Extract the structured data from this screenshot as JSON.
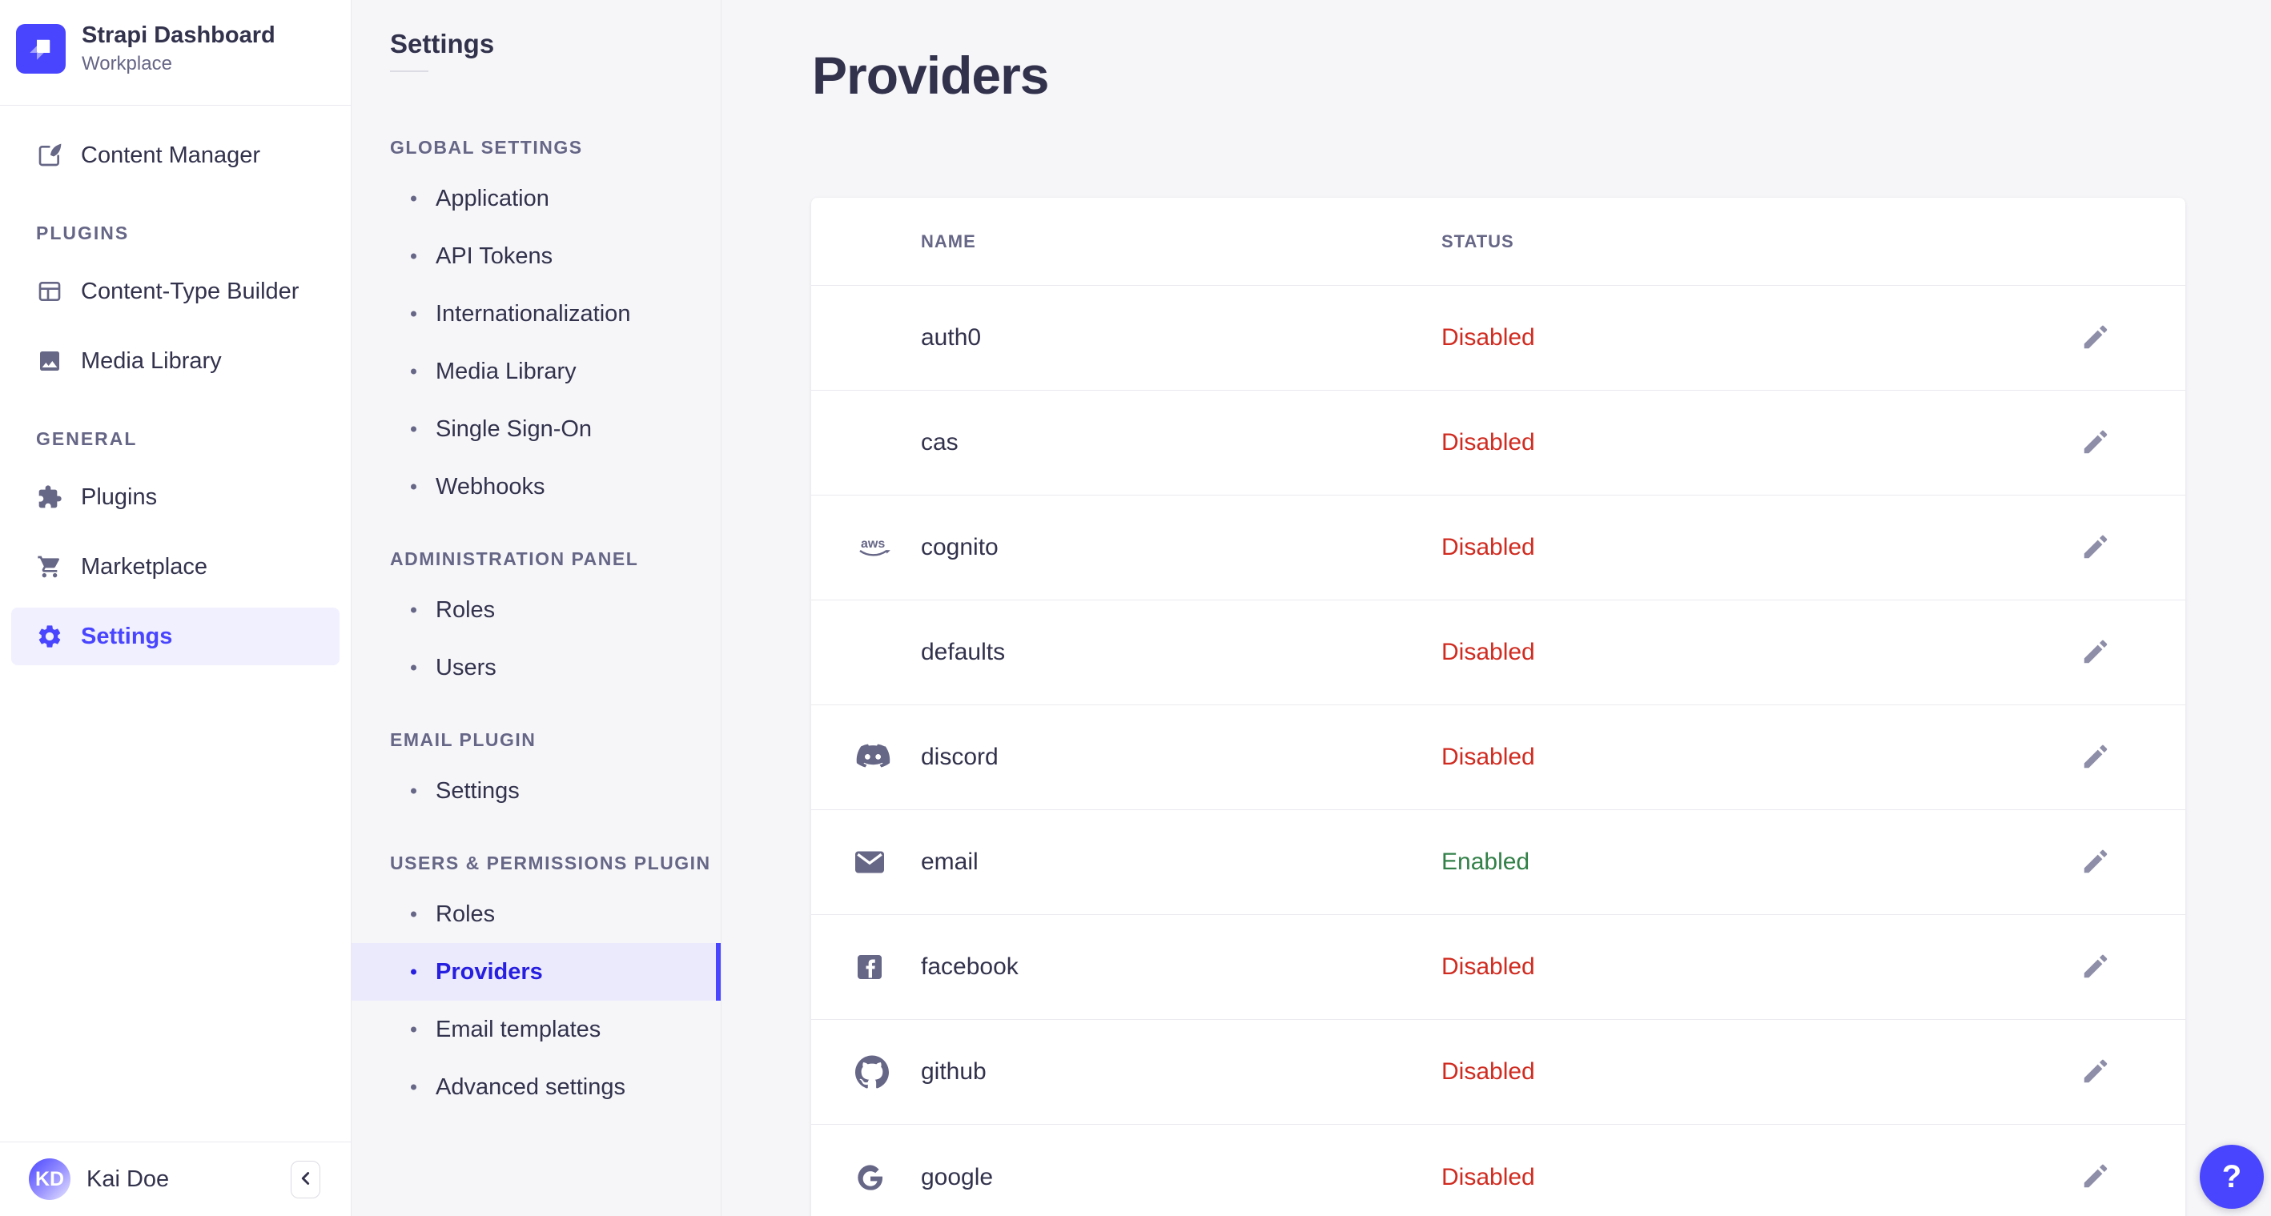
{
  "brand": {
    "name": "Strapi Dashboard",
    "workspace": "Workplace"
  },
  "sidebar": {
    "items_top": [
      {
        "label": "Content Manager",
        "icon": "edit-square-icon",
        "active": false
      }
    ],
    "sections": [
      {
        "title": "PLUGINS",
        "items": [
          {
            "label": "Content-Type Builder",
            "icon": "layout-icon",
            "active": false
          },
          {
            "label": "Media Library",
            "icon": "image-icon",
            "active": false
          }
        ]
      },
      {
        "title": "GENERAL",
        "items": [
          {
            "label": "Plugins",
            "icon": "puzzle-icon",
            "active": false
          },
          {
            "label": "Marketplace",
            "icon": "cart-icon",
            "active": false
          },
          {
            "label": "Settings",
            "icon": "gear-icon",
            "active": true
          }
        ]
      }
    ],
    "user": {
      "initials": "KD",
      "name": "Kai Doe"
    }
  },
  "subnav": {
    "title": "Settings",
    "sections": [
      {
        "title": "GLOBAL SETTINGS",
        "items": [
          {
            "label": "Application",
            "active": false
          },
          {
            "label": "API Tokens",
            "active": false
          },
          {
            "label": "Internationalization",
            "active": false
          },
          {
            "label": "Media Library",
            "active": false
          },
          {
            "label": "Single Sign-On",
            "active": false
          },
          {
            "label": "Webhooks",
            "active": false
          }
        ]
      },
      {
        "title": "ADMINISTRATION PANEL",
        "items": [
          {
            "label": "Roles",
            "active": false
          },
          {
            "label": "Users",
            "active": false
          }
        ]
      },
      {
        "title": "EMAIL PLUGIN",
        "items": [
          {
            "label": "Settings",
            "active": false
          }
        ]
      },
      {
        "title": "USERS & PERMISSIONS PLUGIN",
        "items": [
          {
            "label": "Roles",
            "active": false
          },
          {
            "label": "Providers",
            "active": true
          },
          {
            "label": "Email templates",
            "active": false
          },
          {
            "label": "Advanced settings",
            "active": false
          }
        ]
      }
    ]
  },
  "main": {
    "title": "Providers",
    "table": {
      "columns": [
        "NAME",
        "STATUS"
      ],
      "rows": [
        {
          "name": "auth0",
          "icon": null,
          "status": "Disabled"
        },
        {
          "name": "cas",
          "icon": null,
          "status": "Disabled"
        },
        {
          "name": "cognito",
          "icon": "aws-icon",
          "status": "Disabled"
        },
        {
          "name": "defaults",
          "icon": null,
          "status": "Disabled"
        },
        {
          "name": "discord",
          "icon": "discord-icon",
          "status": "Disabled"
        },
        {
          "name": "email",
          "icon": "envelope-icon",
          "status": "Enabled"
        },
        {
          "name": "facebook",
          "icon": "facebook-icon",
          "status": "Disabled"
        },
        {
          "name": "github",
          "icon": "github-icon",
          "status": "Disabled"
        },
        {
          "name": "google",
          "icon": "google-icon",
          "status": "Disabled"
        }
      ]
    }
  },
  "help_button": {
    "label": "?"
  },
  "colors": {
    "primary": "#4945ff",
    "primary_light_bg": "#f0f0ff",
    "subnav_active_bg": "#ebeafd",
    "primary_active_text": "#271fe0",
    "danger": "#d02b20",
    "success": "#328048",
    "text": "#32324d",
    "text_muted": "#666687",
    "border": "#eaeaef",
    "background": "#f6f6f9"
  }
}
